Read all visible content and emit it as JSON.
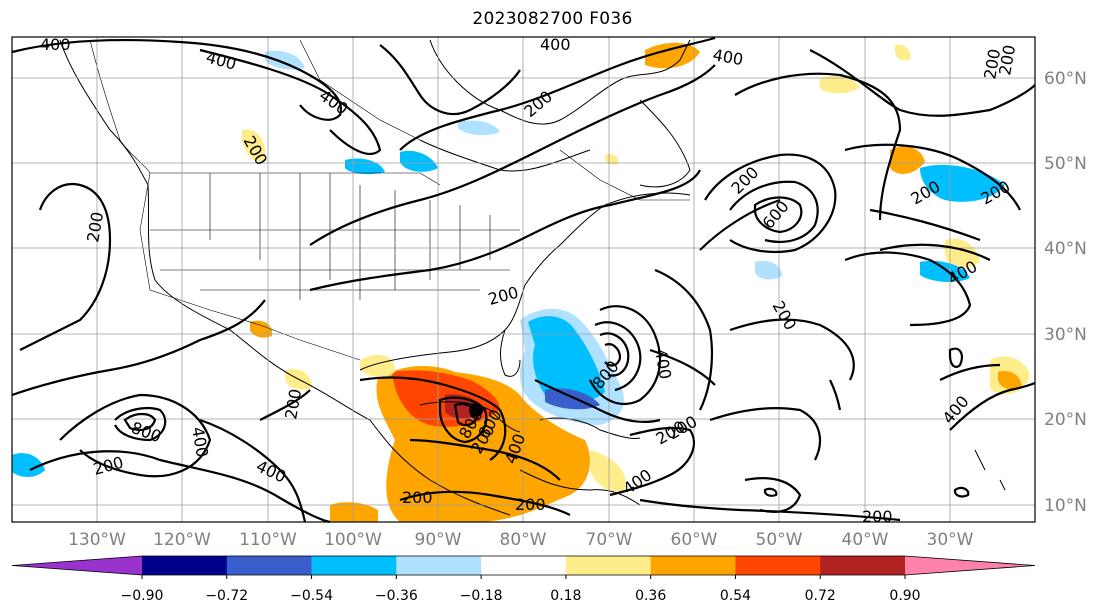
{
  "title": "2023082700 F036",
  "map": {
    "lon_range": [
      -138,
      -16
    ],
    "lat_range": [
      7.5,
      65
    ],
    "lon_ticks": [
      "130°W",
      "120°W",
      "110°W",
      "100°W",
      "90°W",
      "80°W",
      "70°W",
      "60°W",
      "50°W",
      "40°W",
      "30°W"
    ],
    "lat_ticks": [
      "60°N",
      "50°N",
      "40°N",
      "30°N",
      "20°N",
      "10°N"
    ],
    "grid": true
  },
  "contour_labels": [
    "400",
    "400",
    "400",
    "200",
    "200",
    "200",
    "400",
    "200",
    "200",
    "400",
    "200",
    "800",
    "400",
    "200",
    "400",
    "600",
    "200",
    "400",
    "200",
    "400",
    "800",
    "400",
    "200",
    "200",
    "200",
    "400",
    "200",
    "200",
    "200",
    "800",
    "600",
    "400",
    "200",
    "200",
    "200"
  ],
  "colorbar": {
    "ticks": [
      "−0.90",
      "−0.72",
      "−0.54",
      "−0.36",
      "−0.18",
      "0.18",
      "0.36",
      "0.54",
      "0.72",
      "0.90"
    ],
    "colors": [
      "#9a32cd",
      "#00008b",
      "#3a5fcd",
      "#00bfff",
      "#b0e2ff",
      "#ffffff",
      "#ffec8b",
      "#ffa500",
      "#ff4500",
      "#b22222",
      "#ff82ab"
    ],
    "extend": "both"
  }
}
